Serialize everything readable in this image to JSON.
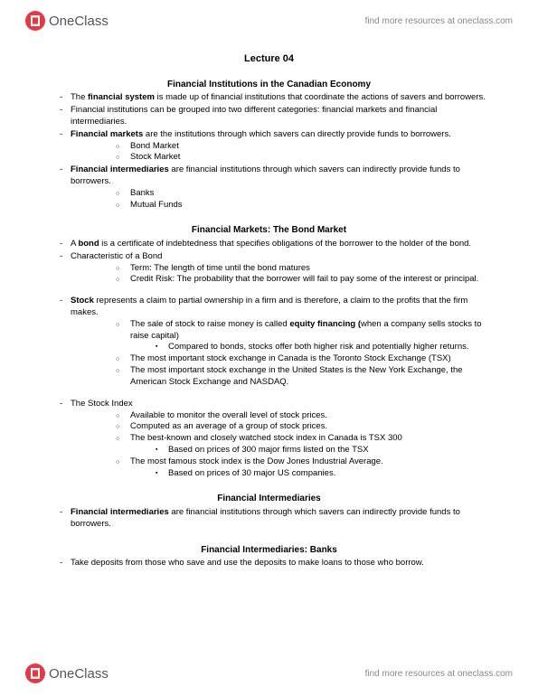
{
  "brand": {
    "name": "OneClass",
    "tagline": "find more resources at oneclass.com"
  },
  "lecture_title": "Lecture 04",
  "sections": {
    "s1": {
      "title": "Financial Institutions in the Canadian Economy",
      "b1": "The <b>financial system</b> is made up of financial institutions that coordinate the actions of savers and borrowers.",
      "b2": "Financial institutions can be grouped into two different categories: financial markets and financial intermediaries.",
      "b3": "<b>Financial markets</b> are the institutions through which savers can directly provide funds to borrowers.",
      "b3a": "Bond Market",
      "b3b": "Stock Market",
      "b4": "<b>Financial intermediaries</b> are financial institutions through which savers can indirectly provide funds to borrowers.",
      "b4a": "Banks",
      "b4b": "Mutual Funds"
    },
    "s2": {
      "title": "Financial Markets: The Bond Market",
      "b1": "A <b>bond</b> is a certificate of indebtedness that specifies obligations of the borrower to the holder of the bond.",
      "b2": "Characteristic of a Bond",
      "b2a": "Term: The length of time until the bond matures",
      "b2b": "Credit Risk: The probability that the borrower will fail to pay some of the interest or principal.",
      "b3": "<b>Stock</b> represents a claim to partial ownership in a firm and is therefore, a claim to the profits that the firm makes.",
      "b3a": "The sale of stock to raise money is called <b>equity financing (</b>when a company sells stocks to raise capital)",
      "b3a1": "Compared to bonds, stocks offer both higher risk and potentially higher returns.",
      "b3b": "The most important stock exchange in Canada is the Toronto Stock Exchange (TSX)",
      "b3c": "The most important stock exchange in the United States is the New York Exchange, the American Stock Exchange and NASDAQ.",
      "b4": "The Stock Index",
      "b4a": "Available to monitor the overall level of stock prices.",
      "b4b": "Computed as an average of a group of stock prices.",
      "b4c": "The best-known and closely watched stock index in Canada is TSX 300",
      "b4c1": "Based on prices of 300 major firms listed on the TSX",
      "b4d": "The most famous stock index is the Dow Jones Industrial Average.",
      "b4d1": "Based on prices of 30 major US companies."
    },
    "s3": {
      "title": "Financial Intermediaries",
      "b1": "<b>Financial intermediaries</b> are financial institutions through which savers can indirectly provide funds to borrowers."
    },
    "s4": {
      "title": "Financial Intermediaries: Banks",
      "b1": "Take deposits from those who save and use the deposits to make loans to those who borrow."
    }
  }
}
